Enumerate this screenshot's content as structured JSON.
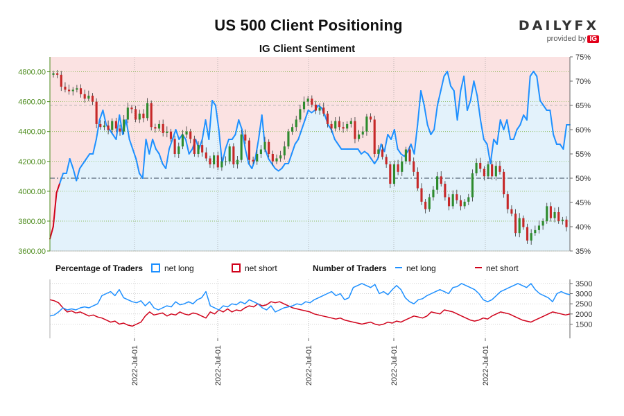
{
  "title": "US 500 Client Positioning",
  "subtitle": "IG Client Sentiment",
  "logo": {
    "brand": "DAILYFX",
    "provided_by": "provided by",
    "ig": "IG"
  },
  "legend": {
    "percentage_header": "Percentage of Traders",
    "pct_long": "net long",
    "pct_short": "net short",
    "number_header": "Number of Traders",
    "num_long": "net long",
    "num_short": "net short"
  },
  "colors": {
    "long": "#1e90ff",
    "short": "#d0021b",
    "long_fill": "#e3f2fb",
    "short_fill": "#fbe2e2",
    "bull": "#2e8b2e",
    "bear": "#c62828",
    "axis_green": "#4a8a1a"
  },
  "chart_data": [
    {
      "type": "candlestick+line",
      "title": "US 500 Client Positioning",
      "subtitle": "IG Client Sentiment",
      "left_axis": {
        "ylim": [
          3600,
          4900
        ],
        "ticks": [
          3600,
          3800,
          4000,
          4200,
          4400,
          4600,
          4800
        ],
        "tick_labels": [
          "3600.00",
          "3800.00",
          "4000.00",
          "4200.00",
          "4400.00",
          "4600.00",
          "4800.00"
        ]
      },
      "right_axis": {
        "ylim": [
          35,
          75
        ],
        "ticks": [
          35,
          40,
          45,
          50,
          55,
          60,
          65,
          70,
          75
        ],
        "tick_labels": [
          "35%",
          "40%",
          "45%",
          "50%",
          "55%",
          "60%",
          "65%",
          "70%",
          "75%"
        ]
      },
      "reference_line_pct": 50,
      "net_long_pct": [
        37.5,
        40,
        47,
        49,
        51,
        51,
        54,
        52,
        49.5,
        52,
        53,
        54,
        55,
        55,
        58,
        62,
        64,
        61,
        60,
        59,
        58,
        63,
        59,
        62,
        58,
        56,
        54,
        51,
        50,
        58,
        55,
        58,
        56,
        55,
        53,
        52,
        56,
        58,
        60,
        58,
        59,
        58,
        55,
        56,
        58,
        56,
        58,
        62,
        58,
        66,
        65,
        60,
        53,
        56,
        58,
        58,
        59,
        62,
        60,
        56,
        53,
        52,
        54,
        58,
        63,
        56,
        54,
        53,
        52,
        51.5,
        52,
        53,
        53,
        55,
        57,
        58,
        60,
        62,
        64,
        63.5,
        64,
        65,
        64.5,
        63,
        61,
        60,
        58,
        57,
        56,
        56,
        56,
        56,
        56,
        56,
        55,
        55.5,
        55,
        54,
        53,
        54,
        57,
        55.5,
        59,
        58,
        60,
        56,
        55,
        54.5,
        55.5,
        57,
        55,
        61,
        68,
        65,
        61,
        59,
        60,
        65,
        68,
        71,
        72,
        69,
        68,
        62,
        68,
        71,
        64,
        66,
        70,
        67,
        62,
        58,
        57,
        53,
        58,
        57,
        62,
        60,
        62,
        58,
        58,
        60,
        61,
        63,
        62,
        71,
        72,
        71,
        66,
        65,
        64,
        64,
        59,
        57,
        57,
        56,
        61,
        61
      ],
      "price_close": [
        4790,
        4780,
        4700,
        4680,
        4670,
        4680,
        4690,
        4650,
        4620,
        4640,
        4600,
        4450,
        4430,
        4440,
        4410,
        4470,
        4420,
        4400,
        4480,
        4560,
        4550,
        4480,
        4520,
        4490,
        4590,
        4430,
        4420,
        4450,
        4390,
        4400,
        4350,
        4250,
        4300,
        4380,
        4400,
        4350,
        4250,
        4310,
        4260,
        4220,
        4180,
        4240,
        4160,
        4200,
        4200,
        4300,
        4180,
        4210,
        4380,
        4340,
        4210,
        4200,
        4250,
        4280,
        4330,
        4250,
        4200,
        4220,
        4240,
        4300,
        4400,
        4430,
        4480,
        4550,
        4600,
        4620,
        4580,
        4540,
        4560,
        4520,
        4450,
        4420,
        4470,
        4430,
        4420,
        4450,
        4470,
        4350,
        4380,
        4400,
        4500,
        4480,
        4250,
        4280,
        4230,
        4180,
        4050,
        4180,
        4130,
        4200,
        4280,
        4200,
        4130,
        4020,
        3930,
        3880,
        3960,
        4010,
        4100,
        4050,
        3960,
        3900,
        3980,
        3940,
        3900,
        3930,
        3960,
        4120,
        4190,
        4150,
        4100,
        4180,
        4100,
        4170,
        4130,
        3980,
        3880,
        3850,
        3720,
        3820,
        3760,
        3670,
        3720,
        3740,
        3770,
        3800,
        3900,
        3820,
        3860,
        3800,
        3810,
        3760
      ],
      "percentage_panel": {
        "net_long_pct": "same as net_long_pct",
        "net_short_pct": "100 - net_long_pct"
      },
      "number_panel": {
        "ylim": [
          800,
          3700
        ],
        "ticks": [
          1500,
          2000,
          2500,
          3000,
          3500
        ],
        "tick_labels": [
          "1500",
          "2000",
          "2500",
          "3000",
          "3500"
        ],
        "net_long": [
          1900,
          1950,
          2100,
          2300,
          2200,
          2250,
          2200,
          2300,
          2350,
          2300,
          2400,
          2500,
          2900,
          3000,
          3100,
          2900,
          3200,
          2800,
          2700,
          2600,
          2550,
          2650,
          2400,
          2600,
          2300,
          2200,
          2300,
          2400,
          2350,
          2600,
          2450,
          2500,
          2600,
          2500,
          2700,
          2800,
          3100,
          2400,
          2300,
          2200,
          2400,
          2350,
          2500,
          2450,
          2600,
          2500,
          2700,
          2600,
          2500,
          2300,
          2200,
          2400,
          2100,
          2200,
          2300,
          2350,
          2400,
          2500,
          2450,
          2600,
          2550,
          2700,
          2800,
          2900,
          3000,
          3100,
          2900,
          3000,
          2700,
          2800,
          3300,
          3400,
          3500,
          3400,
          3300,
          3450,
          3000,
          3100,
          2950,
          3200,
          3400,
          3200,
          2800,
          2600,
          2500,
          2700,
          2750,
          2900,
          3000,
          3100,
          3200,
          3100,
          3000,
          3300,
          3350,
          3500,
          3400,
          3300,
          3200,
          3000,
          2700,
          2600,
          2700,
          2900,
          3100,
          3200,
          3300,
          3400,
          3500,
          3400,
          3300,
          3500,
          3200,
          3000,
          2900,
          2800,
          2600,
          3000,
          3100,
          3000,
          2950
        ],
        "net_short": [
          2700,
          2650,
          2550,
          2300,
          2100,
          2150,
          2050,
          2100,
          2000,
          1900,
          1950,
          1850,
          1800,
          1700,
          1600,
          1650,
          1500,
          1550,
          1450,
          1400,
          1500,
          1600,
          1900,
          2100,
          1950,
          2000,
          2050,
          1900,
          2000,
          1950,
          2100,
          2000,
          1950,
          2050,
          2000,
          1900,
          1800,
          2100,
          2000,
          2200,
          2100,
          2250,
          2100,
          2200,
          2150,
          2300,
          2400,
          2350,
          2500,
          2400,
          2450,
          2600,
          2550,
          2600,
          2500,
          2400,
          2300,
          2250,
          2200,
          2150,
          2100,
          2000,
          1950,
          1900,
          1850,
          1800,
          1750,
          1800,
          1700,
          1650,
          1600,
          1550,
          1500,
          1550,
          1600,
          1500,
          1450,
          1500,
          1600,
          1550,
          1650,
          1600,
          1700,
          1800,
          1900,
          1850,
          1800,
          1900,
          2100,
          2050,
          2000,
          2200,
          2150,
          2100,
          2000,
          1900,
          1800,
          1700,
          1650,
          1700,
          1800,
          1750,
          1900,
          2000,
          2100,
          2050,
          2000,
          1900,
          1800,
          1700,
          1650,
          1600,
          1700,
          1800,
          1900,
          2000,
          2100,
          2050,
          2000,
          1950,
          2000
        ]
      },
      "x_tick_labels": [
        "2022-Jul-01",
        "2022-Jul-01",
        "2022-Jul-01",
        "2022-Jul-01",
        "2022-Jul-01"
      ]
    }
  ]
}
